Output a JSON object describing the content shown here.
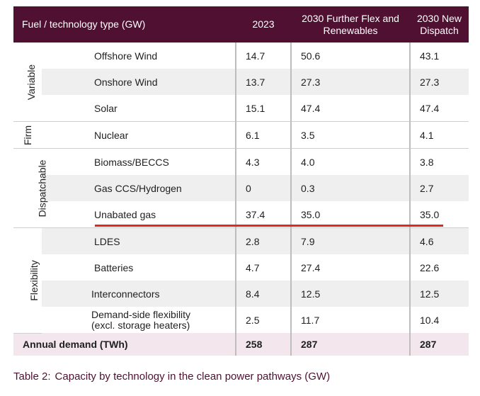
{
  "table": {
    "headers": [
      "Fuel / technology type (GW)",
      "2023",
      "2030 Further Flex and Renewables",
      "2030 New Dispatch"
    ],
    "groups": [
      {
        "label": "Variable",
        "rows": [
          {
            "name": "Offshore Wind",
            "v2023": "14.7",
            "vffr": "50.6",
            "vnd": "43.1"
          },
          {
            "name": "Onshore Wind",
            "v2023": "13.7",
            "vffr": "27.3",
            "vnd": "27.3"
          },
          {
            "name": "Solar",
            "v2023": "15.1",
            "vffr": "47.4",
            "vnd": "47.4"
          }
        ]
      },
      {
        "label": "Firm",
        "rows": [
          {
            "name": "Nuclear",
            "v2023": "6.1",
            "vffr": "3.5",
            "vnd": "4.1"
          }
        ]
      },
      {
        "label": "Dispatchable",
        "rows": [
          {
            "name": "Biomass/BECCS",
            "v2023": "4.3",
            "vffr": "4.0",
            "vnd": "3.8"
          },
          {
            "name": "Gas CCS/Hydrogen",
            "v2023": "0",
            "vffr": "0.3",
            "vnd": "2.7"
          },
          {
            "name": "Unabated gas",
            "v2023": "37.4",
            "vffr": "35.0",
            "vnd": "35.0"
          }
        ]
      },
      {
        "label": "Flexibility",
        "rows": [
          {
            "name": "LDES",
            "v2023": "2.8",
            "vffr": "7.9",
            "vnd": "4.6"
          },
          {
            "name": "Batteries",
            "v2023": "4.7",
            "vffr": "27.4",
            "vnd": "22.6"
          },
          {
            "name": "Interconnectors",
            "v2023": "8.4",
            "vffr": "12.5",
            "vnd": "12.5"
          },
          {
            "name": "Demand-side flexibility",
            "name2": "(excl. storage heaters)",
            "v2023": "2.5",
            "vffr": "11.7",
            "vnd": "10.4"
          }
        ]
      }
    ],
    "total": {
      "name": "Annual demand (TWh)",
      "v2023": "258",
      "vffr": "287",
      "vnd": "287"
    }
  },
  "caption": {
    "label": "Table 2:",
    "text": "Capacity by technology in the clean power pathways (GW)"
  },
  "colors": {
    "header_bg": "#4f1032",
    "highlight_line": "#e4261f",
    "total_bg": "#f3e6ec"
  }
}
